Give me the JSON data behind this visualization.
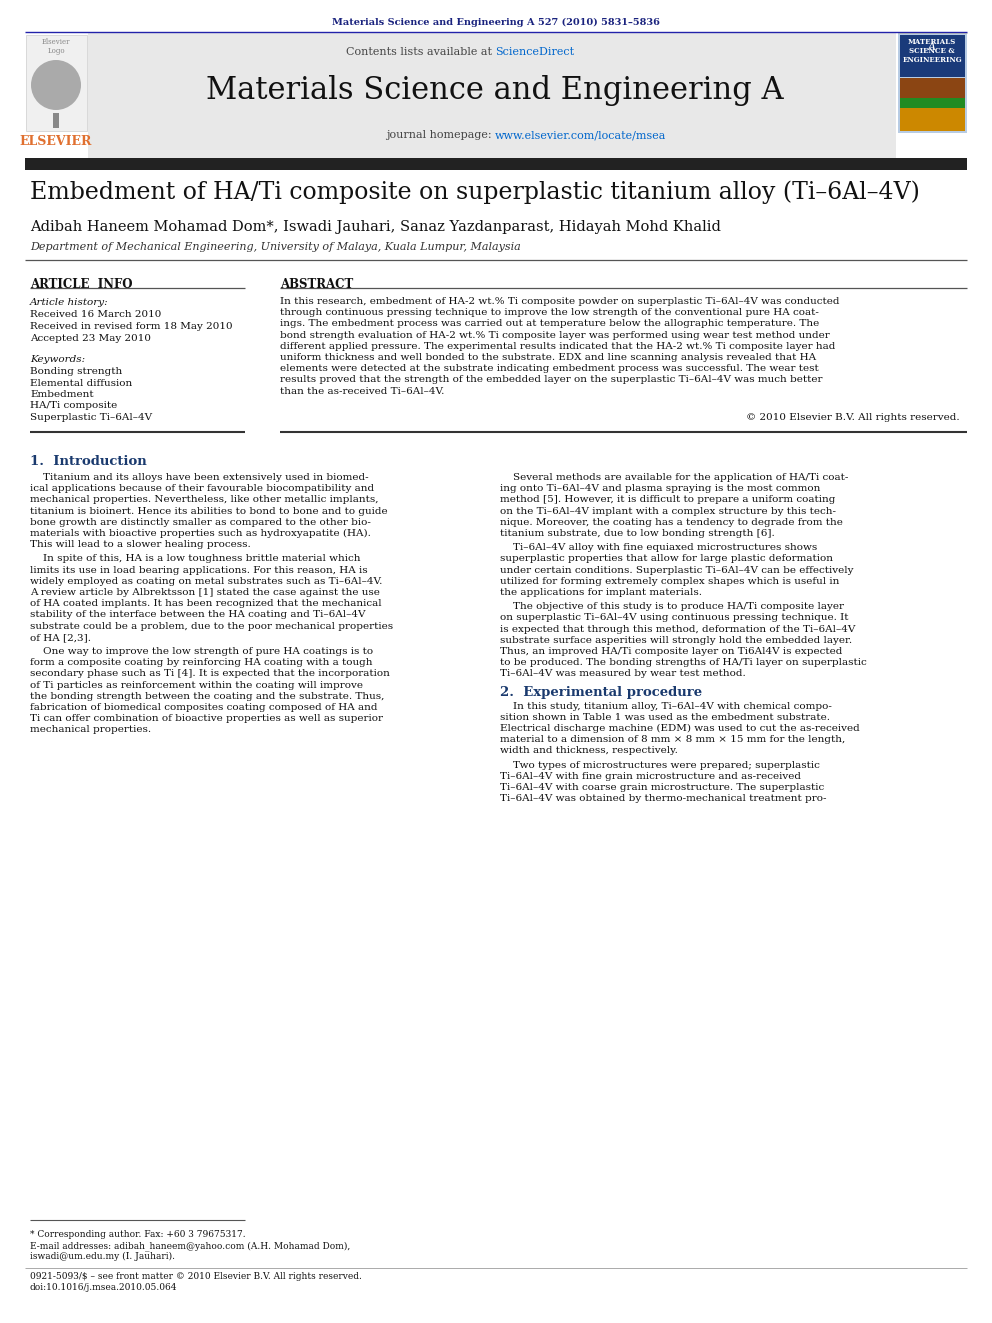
{
  "page_bg": "#ffffff",
  "top_journal_ref": "Materials Science and Engineering A 527 (2010) 5831–5836",
  "top_journal_ref_color": "#1a237e",
  "header_bg": "#e8e8e8",
  "header_sciencedirect_color": "#0066cc",
  "journal_homepage_url_color": "#0066cc",
  "dark_bar_color": "#222222",
  "paper_title": "Embedment of HA/Ti composite on superplastic titanium alloy (Ti–6Al–4V)",
  "authors": "Adibah Haneem Mohamad Dom*, Iswadi Jauhari, Sanaz Yazdanparast, Hidayah Mohd Khalid",
  "affiliation": "Department of Mechanical Engineering, University of Malaya, Kuala Lumpur, Malaysia",
  "article_info_label": "ARTICLE  INFO",
  "abstract_label": "ABSTRACT",
  "article_history_label": "Article history:",
  "received_date": "Received 16 March 2010",
  "received_revised": "Received in revised form 18 May 2010",
  "accepted": "Accepted 23 May 2010",
  "keywords_label": "Keywords:",
  "keywords": [
    "Bonding strength",
    "Elemental diffusion",
    "Embedment",
    "HA/Ti composite",
    "Superplastic Ti–6Al–4V"
  ],
  "copyright_text": "© 2010 Elsevier B.V. All rights reserved.",
  "section1_label": "1.  Introduction",
  "section2_label": "2.  Experimental procedure",
  "footer_text1": "* Corresponding author. Fax: +60 3 79675317.",
  "footer_text2": "E-mail addresses: adibah_haneem@yahoo.com (A.H. Mohamad Dom),",
  "footer_text3": "iswadi@um.edu.my (I. Jauhari).",
  "footer_issn": "0921-5093/$ – see front matter © 2010 Elsevier B.V. All rights reserved.",
  "footer_doi": "doi:10.1016/j.msea.2010.05.064",
  "elsevier_color": "#e07030",
  "section_label_color": "#1a3a6e",
  "text_color": "#111111",
  "abstract_lines": [
    "In this research, embedment of HA-2 wt.% Ti composite powder on superplastic Ti–6Al–4V was conducted",
    "through continuous pressing technique to improve the low strength of the conventional pure HA coat-",
    "ings. The embedment process was carried out at temperature below the allographic temperature. The",
    "bond strength evaluation of HA-2 wt.% Ti composite layer was performed using wear test method under",
    "different applied pressure. The experimental results indicated that the HA-2 wt.% Ti composite layer had",
    "uniform thickness and well bonded to the substrate. EDX and line scanning analysis revealed that HA",
    "elements were detected at the substrate indicating embedment process was successful. The wear test",
    "results proved that the strength of the embedded layer on the superplastic Ti–6Al–4V was much better",
    "than the as-received Ti–6Al–4V."
  ],
  "intro_c1_p1": [
    "    Titanium and its alloys have been extensively used in biomed-",
    "ical applications because of their favourable biocompatibility and",
    "mechanical properties. Nevertheless, like other metallic implants,",
    "titanium is bioinert. Hence its abilities to bond to bone and to guide",
    "bone growth are distinctly smaller as compared to the other bio-",
    "materials with bioactive properties such as hydroxyapatite (HA).",
    "This will lead to a slower healing process."
  ],
  "intro_c1_p2": [
    "    In spite of this, HA is a low toughness brittle material which",
    "limits its use in load bearing applications. For this reason, HA is",
    "widely employed as coating on metal substrates such as Ti–6Al–4V.",
    "A review article by Albrektsson [1] stated the case against the use",
    "of HA coated implants. It has been recognized that the mechanical",
    "stability of the interface between the HA coating and Ti–6Al–4V",
    "substrate could be a problem, due to the poor mechanical properties",
    "of HA [2,3]."
  ],
  "intro_c1_p3": [
    "    One way to improve the low strength of pure HA coatings is to",
    "form a composite coating by reinforcing HA coating with a tough",
    "secondary phase such as Ti [4]. It is expected that the incorporation",
    "of Ti particles as reinforcement within the coating will improve",
    "the bonding strength between the coating and the substrate. Thus,",
    "fabrication of biomedical composites coating composed of HA and",
    "Ti can offer combination of bioactive properties as well as superior",
    "mechanical properties."
  ],
  "intro_c2_p1": [
    "    Several methods are available for the application of HA/Ti coat-",
    "ing onto Ti–6Al–4V and plasma spraying is the most common",
    "method [5]. However, it is difficult to prepare a uniform coating",
    "on the Ti–6Al–4V implant with a complex structure by this tech-",
    "nique. Moreover, the coating has a tendency to degrade from the",
    "titanium substrate, due to low bonding strength [6]."
  ],
  "intro_c2_p2": [
    "    Ti–6Al–4V alloy with fine equiaxed microstructures shows",
    "superplastic properties that allow for large plastic deformation",
    "under certain conditions. Superplastic Ti–6Al–4V can be effectively",
    "utilized for forming extremely complex shapes which is useful in",
    "the applications for implant materials."
  ],
  "intro_c2_p3": [
    "    The objective of this study is to produce HA/Ti composite layer",
    "on superplastic Ti–6Al–4V using continuous pressing technique. It",
    "is expected that through this method, deformation of the Ti–6Al–4V",
    "substrate surface asperities will strongly hold the embedded layer.",
    "Thus, an improved HA/Ti composite layer on Ti6Al4V is expected",
    "to be produced. The bonding strengths of HA/Ti layer on superplastic",
    "Ti–6Al–4V was measured by wear test method."
  ],
  "sec2_c2_p1": [
    "    In this study, titanium alloy, Ti–6Al–4V with chemical compo-",
    "sition shown in Table 1 was used as the embedment substrate.",
    "Electrical discharge machine (EDM) was used to cut the as-received",
    "material to a dimension of 8 mm × 8 mm × 15 mm for the length,",
    "width and thickness, respectively."
  ],
  "sec2_c2_p2": [
    "    Two types of microstructures were prepared; superplastic",
    "Ti–6Al–4V with fine grain microstructure and as-received",
    "Ti–6Al–4V with coarse grain microstructure. The superplastic",
    "Ti–6Al–4V was obtained by thermo-mechanical treatment pro-"
  ]
}
